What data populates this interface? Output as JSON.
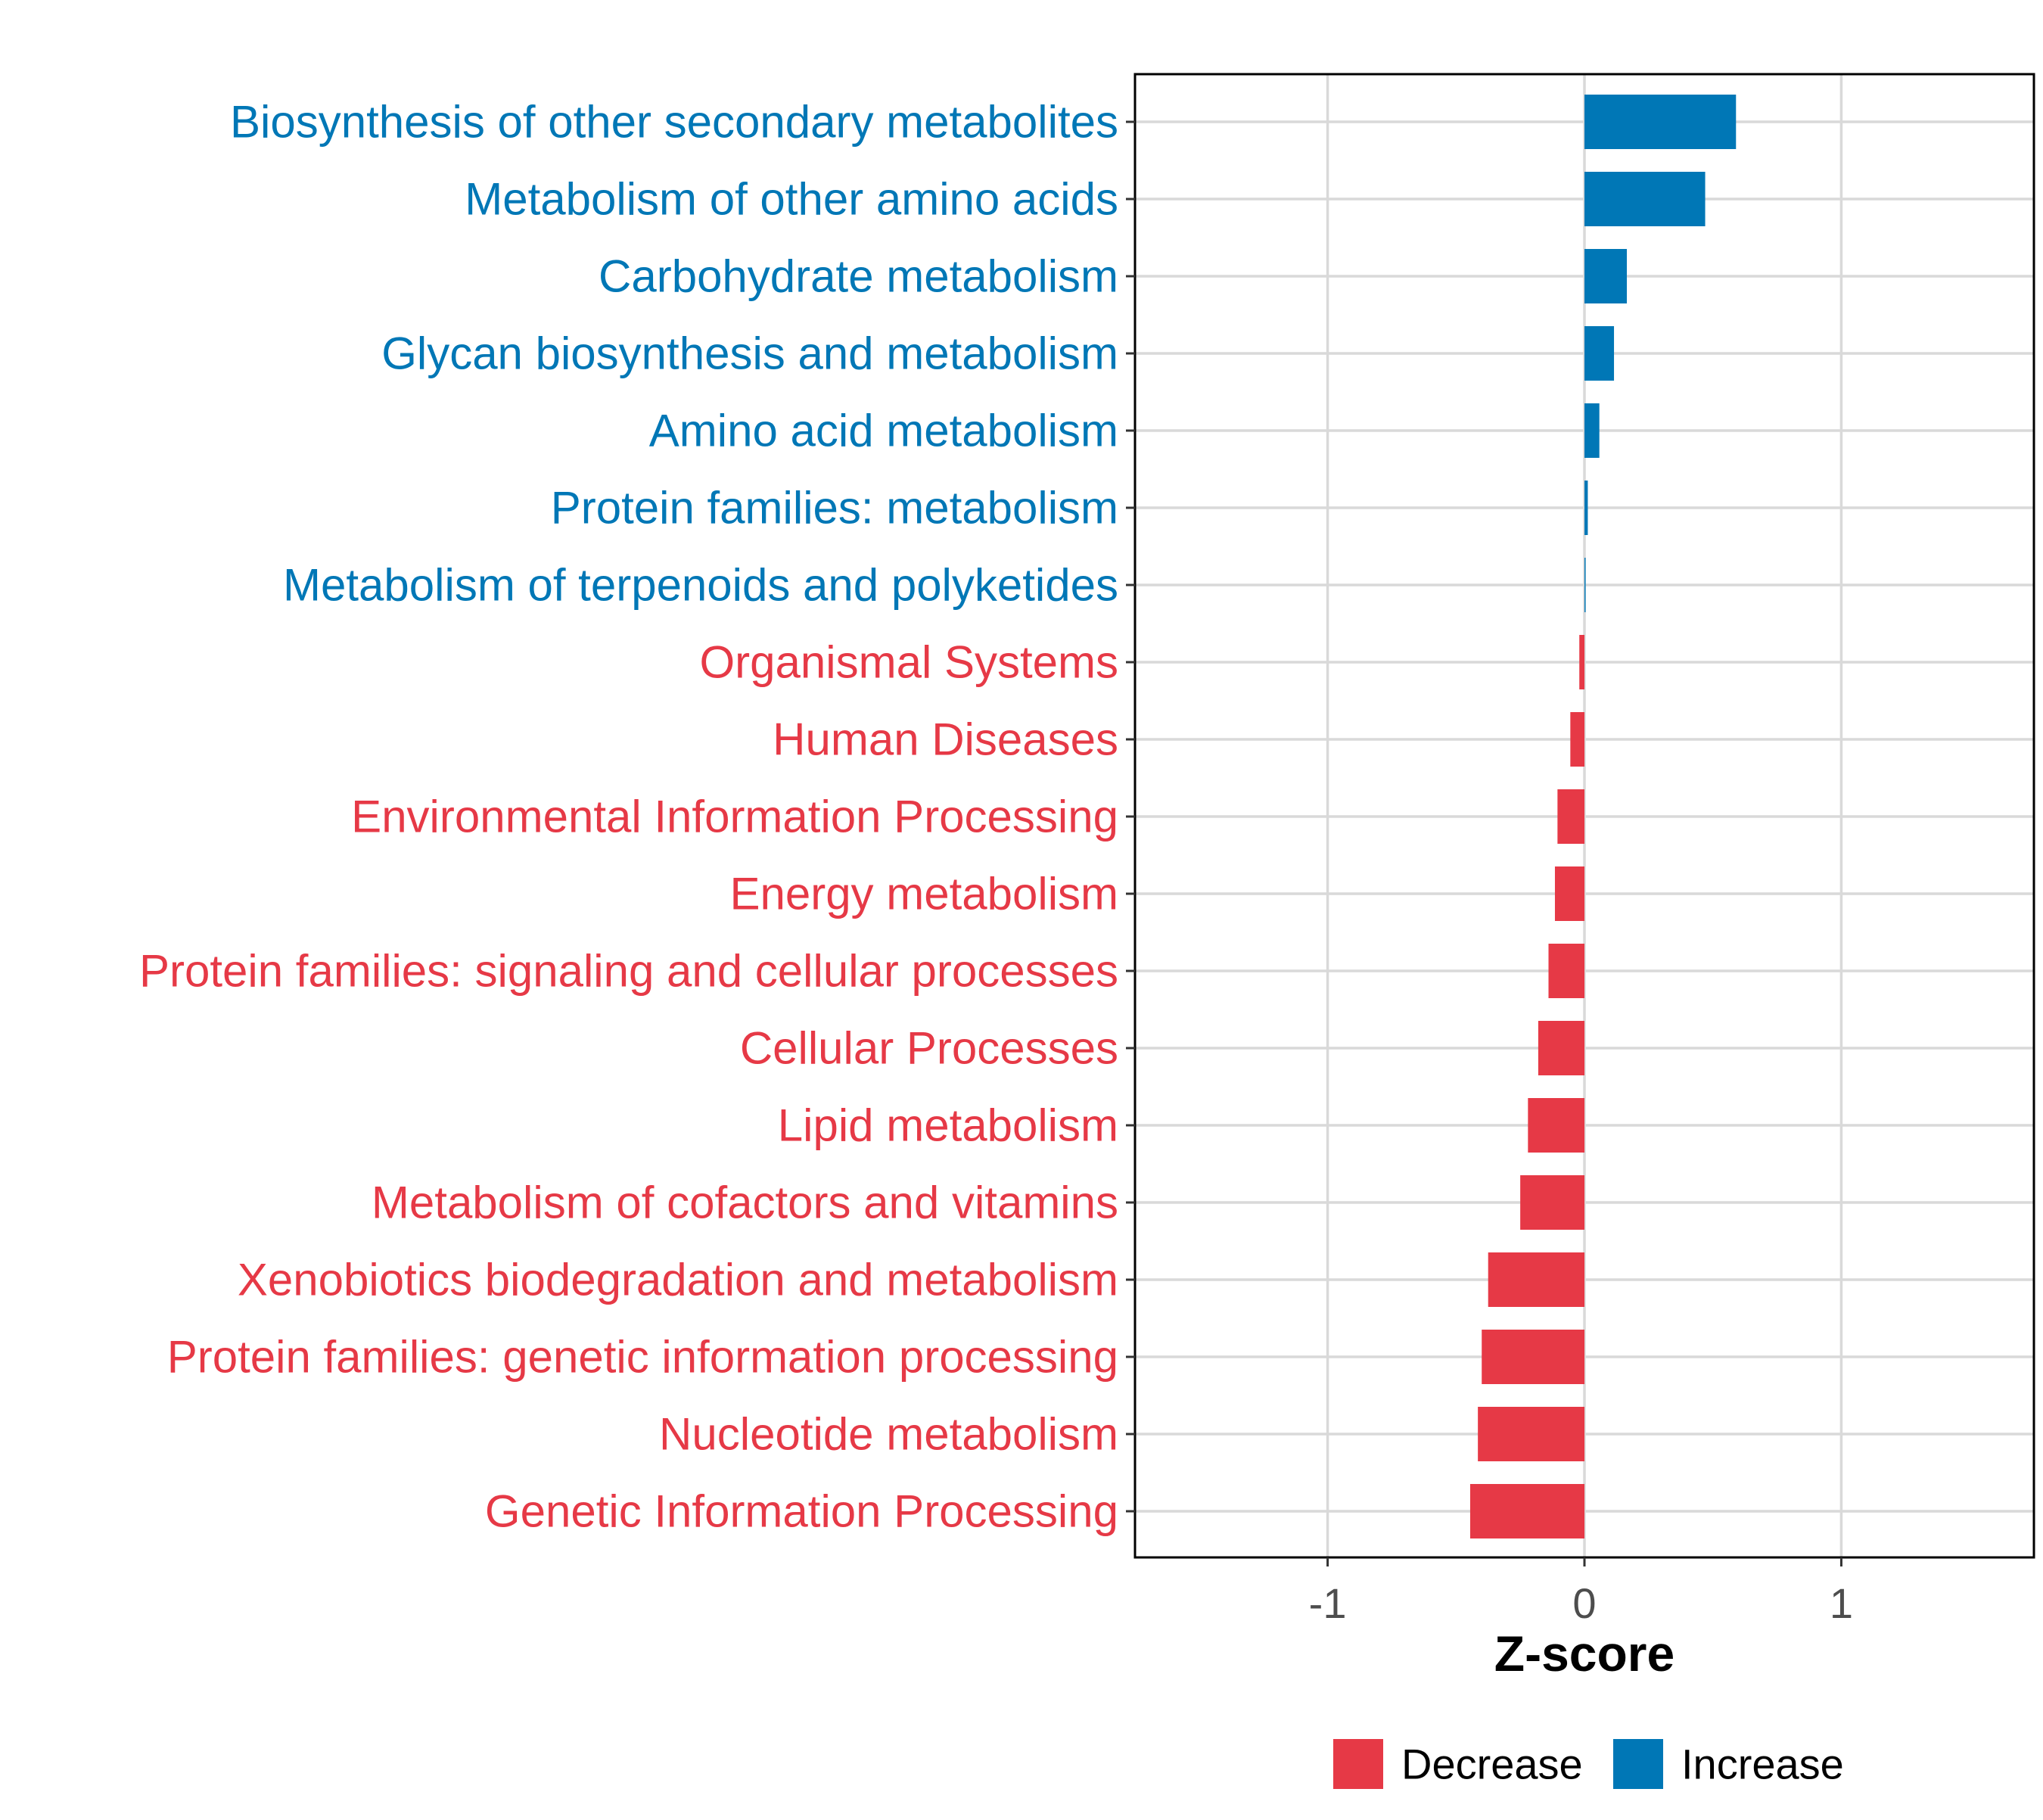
{
  "chart_data": {
    "type": "bar",
    "orientation": "horizontal",
    "title": "",
    "xlabel": "Z-score",
    "ylabel": "",
    "xlim": [
      -1.75,
      1.75
    ],
    "xticks": [
      -1,
      0,
      1
    ],
    "xtick_labels": [
      "-1",
      "0",
      "1"
    ],
    "grid": true,
    "legend_position": "bottom",
    "colors": {
      "Decrease": "#E63946",
      "Increase": "#0077B6"
    },
    "legend": [
      {
        "label": "Decrease",
        "color": "#E63946"
      },
      {
        "label": "Increase",
        "color": "#0077B6"
      }
    ],
    "categories": [
      "Biosynthesis of other secondary metabolites",
      "Metabolism of other amino acids",
      "Carbohydrate metabolism",
      "Glycan biosynthesis and metabolism",
      "Amino acid metabolism",
      "Protein families: metabolism",
      "Metabolism of terpenoids and polyketides",
      "Organismal Systems",
      "Human Diseases",
      "Environmental Information Processing",
      "Energy metabolism",
      "Protein families: signaling and cellular processes",
      "Cellular Processes",
      "Lipid metabolism",
      "Metabolism of cofactors and vitamins",
      "Xenobiotics biodegradation and metabolism",
      "Protein families: genetic information processing",
      "Nucleotide metabolism",
      "Genetic Information Processing"
    ],
    "values": [
      0.59,
      0.47,
      0.165,
      0.115,
      0.058,
      0.013,
      0.004,
      -0.02,
      -0.055,
      -0.105,
      -0.115,
      -0.14,
      -0.18,
      -0.22,
      -0.25,
      -0.375,
      -0.4,
      -0.415,
      -0.445
    ],
    "groups": [
      "Increase",
      "Increase",
      "Increase",
      "Increase",
      "Increase",
      "Increase",
      "Increase",
      "Decrease",
      "Decrease",
      "Decrease",
      "Decrease",
      "Decrease",
      "Decrease",
      "Decrease",
      "Decrease",
      "Decrease",
      "Decrease",
      "Decrease",
      "Decrease"
    ]
  }
}
